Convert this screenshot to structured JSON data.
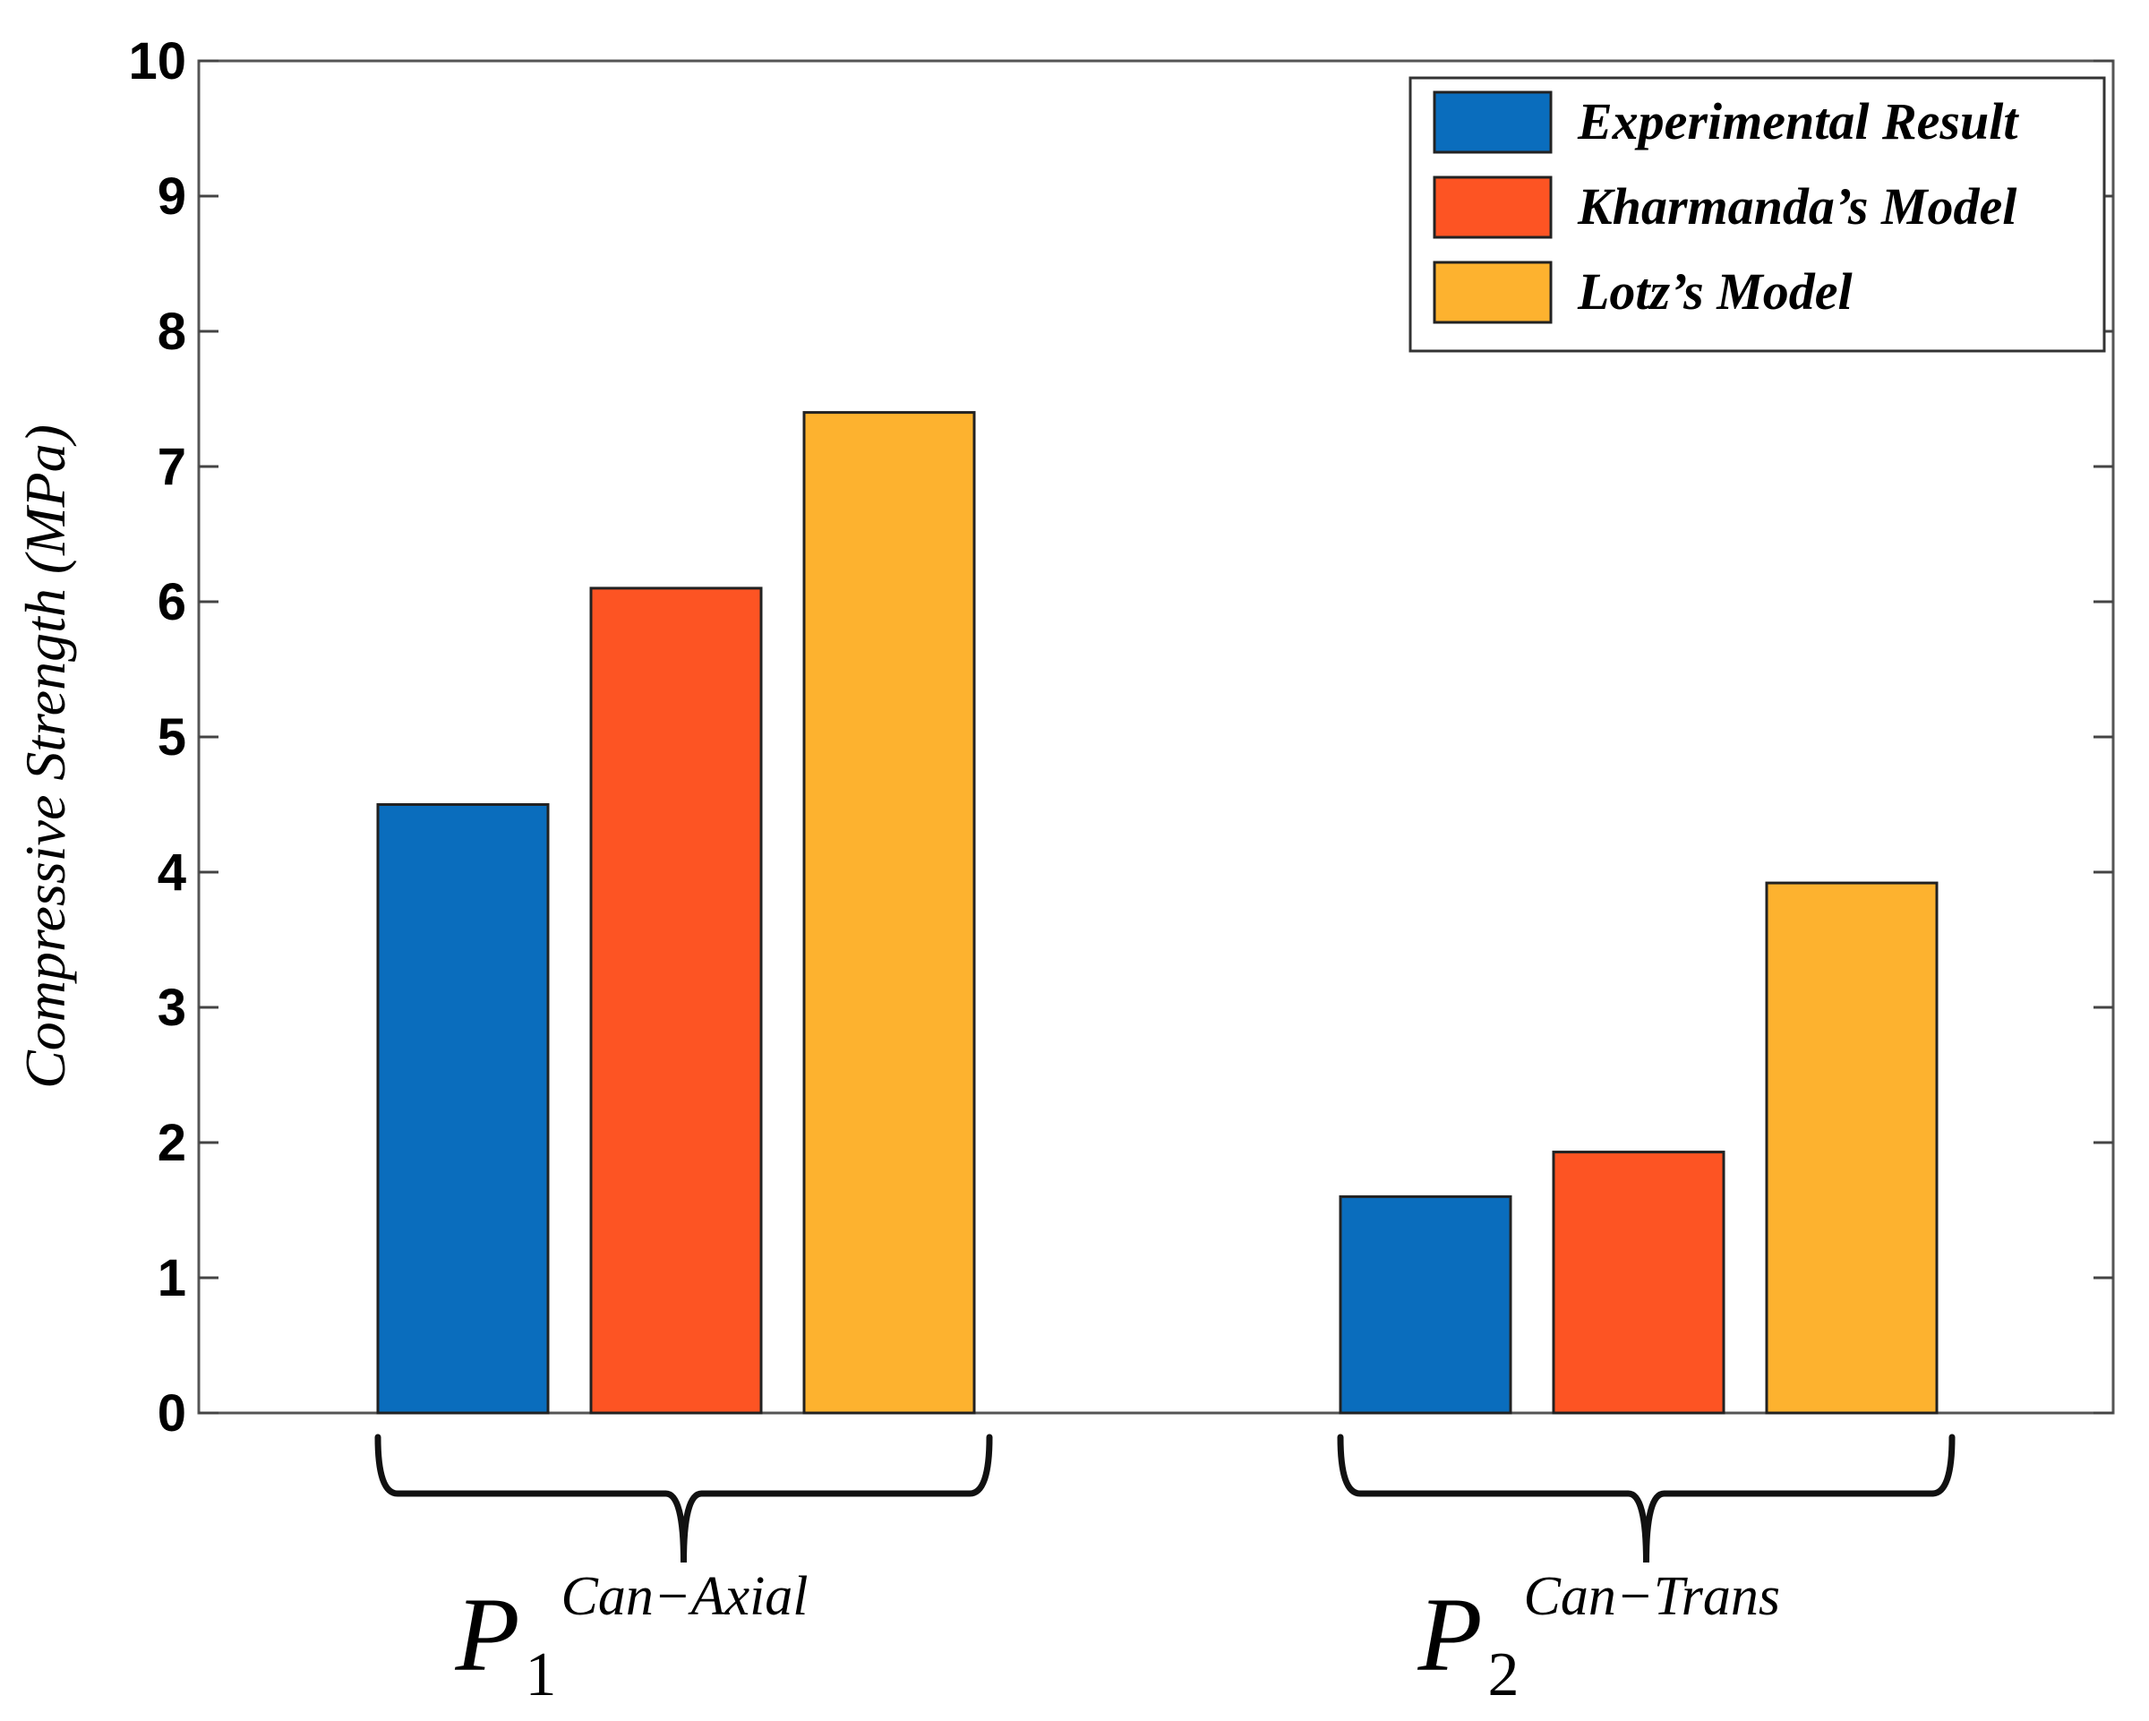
{
  "chart_data": {
    "type": "bar",
    "title": "",
    "xlabel": "",
    "ylabel": "Compressive Strength (MPa)",
    "ylim": [
      0,
      10
    ],
    "yticks": [
      "0",
      "1",
      "2",
      "3",
      "4",
      "5",
      "6",
      "7",
      "8",
      "9",
      "10"
    ],
    "grid": false,
    "legend_position": "top-right",
    "categories": [
      {
        "main": "P",
        "sub": "1",
        "sup": "Can−Axial"
      },
      {
        "main": "P",
        "sub": "2",
        "sup": "Can−Trans"
      }
    ],
    "series": [
      {
        "name": "Experimental Result",
        "color": "#0a6dbd",
        "values": [
          4.5,
          1.6
        ]
      },
      {
        "name": "Kharmanda’s Model",
        "color": "#fd5423",
        "values": [
          6.1,
          1.93
        ]
      },
      {
        "name": "Lotz’s Model",
        "color": "#fdb22f",
        "values": [
          7.4,
          3.92
        ]
      }
    ]
  }
}
